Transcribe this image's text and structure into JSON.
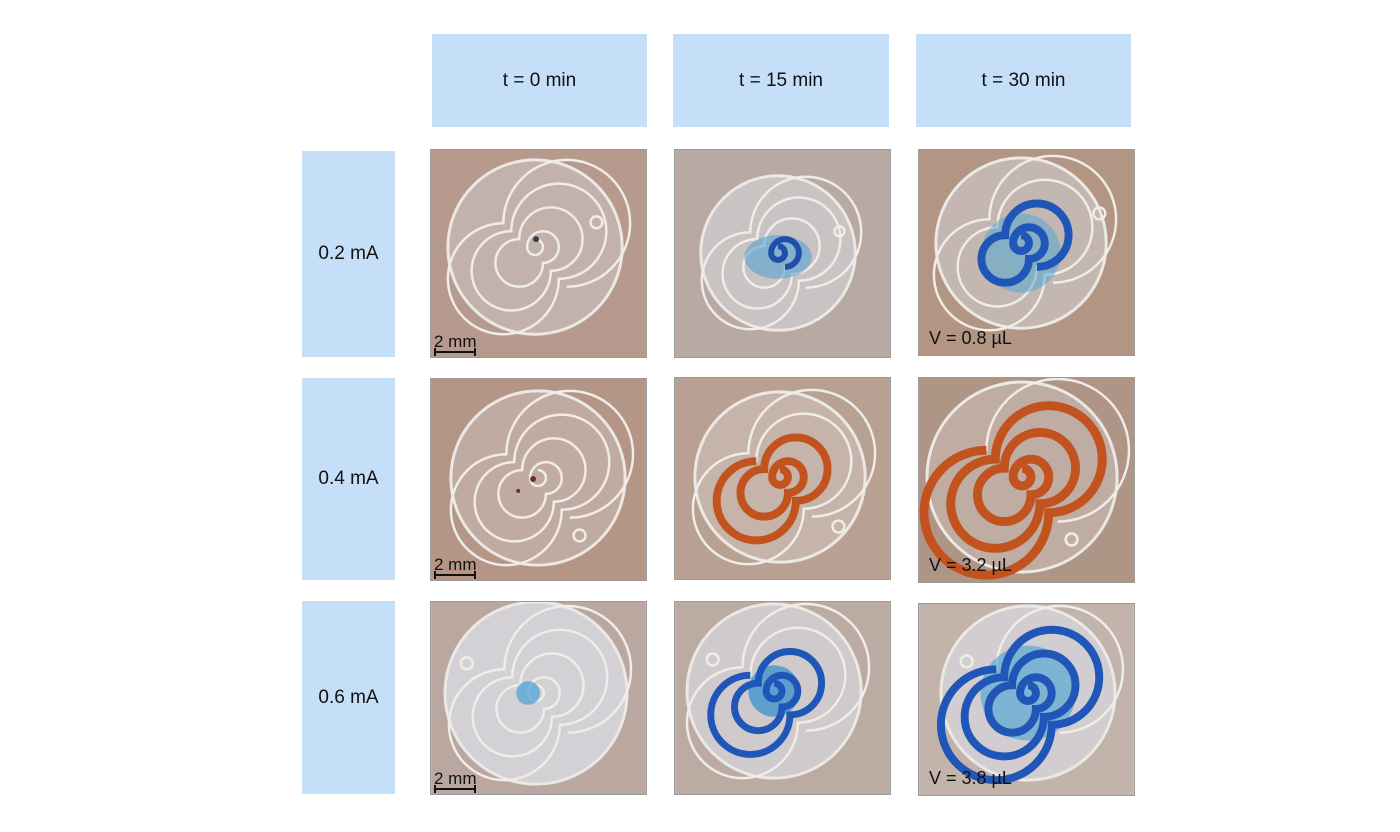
{
  "columns": [
    {
      "label": "t = 0 min"
    },
    {
      "label": "t = 15 min"
    },
    {
      "label": "t = 30 min"
    }
  ],
  "rows": [
    {
      "label": "0.2 mA"
    },
    {
      "label": "0.4 mA"
    },
    {
      "label": "0.6 mA"
    }
  ],
  "scale_bar": {
    "label": "2 mm"
  },
  "volumes": {
    "row1": "V = 0.8 µL",
    "row2": "V = 3.2 µL",
    "row3": "V = 3.8 µL"
  },
  "colors": {
    "header_fill": "#c5dff9",
    "blue_dye": "#1f56b8",
    "orange_dye": "#c2521e"
  }
}
